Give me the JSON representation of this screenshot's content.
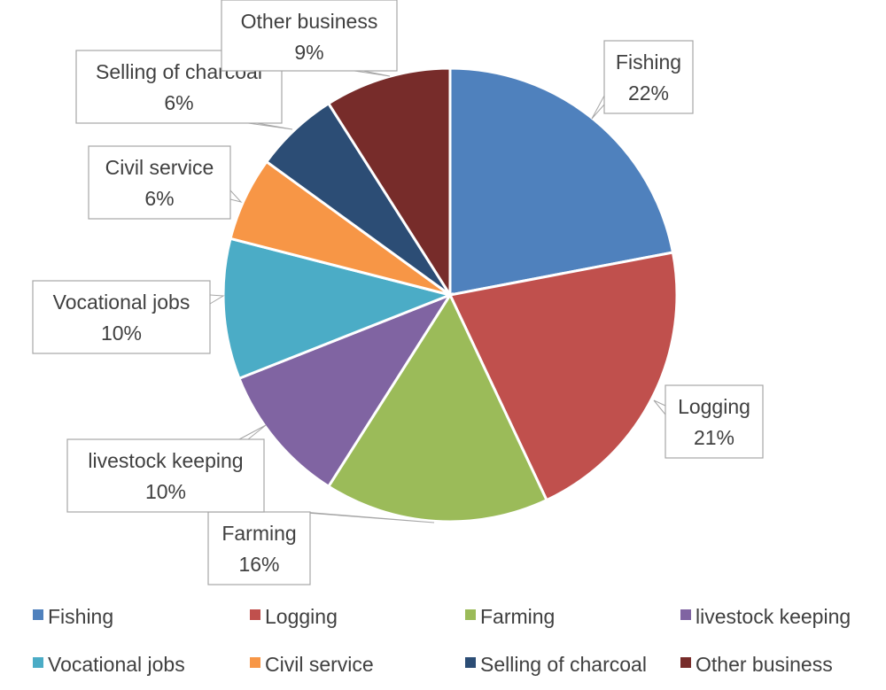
{
  "chart_data": {
    "type": "pie",
    "title": "",
    "categories": [
      "Fishing",
      "Logging",
      "Farming",
      "livestock keeping",
      "Vocational jobs",
      "Civil service",
      "Selling of charcoal",
      "Other business"
    ],
    "values": [
      22,
      21,
      16,
      10,
      10,
      6,
      6,
      9
    ],
    "value_labels": [
      "22%",
      "21%",
      "16%",
      "10%",
      "10%",
      "6%",
      "6%",
      "9%"
    ],
    "colors": [
      "#4f81bd",
      "#c0504d",
      "#9bbb59",
      "#8064a2",
      "#4bacc6",
      "#f79646",
      "#2c4d75",
      "#772c2a"
    ],
    "start_angle_deg": 0,
    "direction": "clockwise",
    "legend_position": "bottom"
  }
}
